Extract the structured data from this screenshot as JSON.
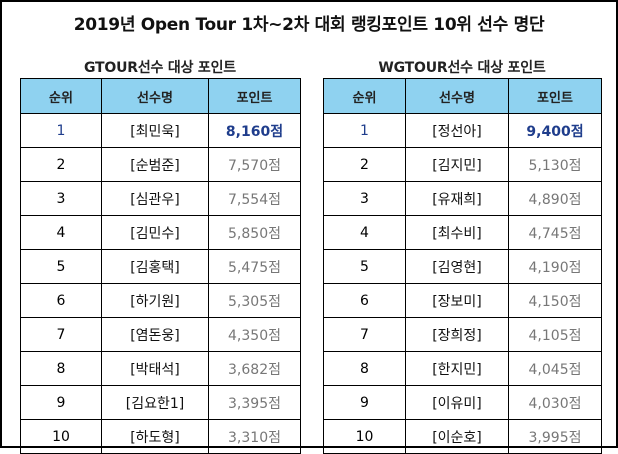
{
  "title": "2019년 Open Tour 1차~2차 대회 랭킹포인트 10위 선수 명단",
  "colors": {
    "header_bg": "#8fd2f0",
    "first_place": "#1f3d8c",
    "points_text": "#777777"
  },
  "gtour": {
    "subtitle": "GTOUR선수 대상 포인트",
    "headers": [
      "순위",
      "선수명",
      "포인트"
    ],
    "rows": [
      {
        "rank": "1",
        "name": "[최민욱]",
        "points": "8,160점"
      },
      {
        "rank": "2",
        "name": "[순범준]",
        "points": "7,570점"
      },
      {
        "rank": "3",
        "name": "[심관우]",
        "points": "7,554점"
      },
      {
        "rank": "4",
        "name": "[김민수]",
        "points": "5,850점"
      },
      {
        "rank": "5",
        "name": "[김홍택]",
        "points": "5,475점"
      },
      {
        "rank": "6",
        "name": "[하기원]",
        "points": "5,305점"
      },
      {
        "rank": "7",
        "name": "[염돈웅]",
        "points": "4,350점"
      },
      {
        "rank": "8",
        "name": "[박태석]",
        "points": "3,682점"
      },
      {
        "rank": "9",
        "name": "[김요한1]",
        "points": "3,395점"
      },
      {
        "rank": "10",
        "name": "[하도형]",
        "points": "3,310점"
      }
    ]
  },
  "wgtour": {
    "subtitle": "WGTOUR선수 대상 포인트",
    "headers": [
      "순위",
      "선수명",
      "포인트"
    ],
    "rows": [
      {
        "rank": "1",
        "name": "[정선아]",
        "points": "9,400점"
      },
      {
        "rank": "2",
        "name": "[김지민]",
        "points": "5,130점"
      },
      {
        "rank": "3",
        "name": "[유재희]",
        "points": "4,890점"
      },
      {
        "rank": "4",
        "name": "[최수비]",
        "points": "4,745점"
      },
      {
        "rank": "5",
        "name": "[김영현]",
        "points": "4,190점"
      },
      {
        "rank": "6",
        "name": "[장보미]",
        "points": "4,150점"
      },
      {
        "rank": "7",
        "name": "[장희정]",
        "points": "4,105점"
      },
      {
        "rank": "8",
        "name": "[한지민]",
        "points": "4,045점"
      },
      {
        "rank": "9",
        "name": "[이유미]",
        "points": "4,030점"
      },
      {
        "rank": "10",
        "name": "[이순호]",
        "points": "3,995점"
      }
    ]
  }
}
